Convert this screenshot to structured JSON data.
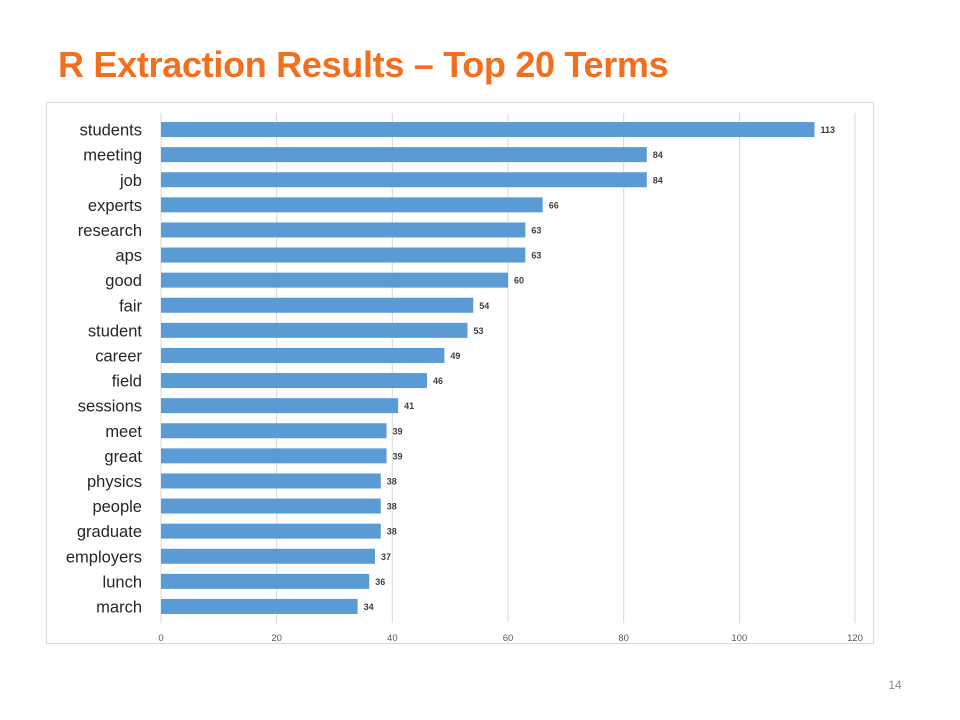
{
  "slide": {
    "title": "R Extraction Results – Top 20 Terms",
    "page_number": "14"
  },
  "colors": {
    "title": "#F36F1D",
    "bar": "#5B9BD5",
    "grid": "#d9d9d9"
  },
  "chart_data": {
    "type": "bar",
    "orientation": "horizontal",
    "categories": [
      "students",
      "meeting",
      "job",
      "experts",
      "research",
      "aps",
      "good",
      "fair",
      "student",
      "career",
      "field",
      "sessions",
      "meet",
      "great",
      "physics",
      "people",
      "graduate",
      "employers",
      "lunch",
      "march"
    ],
    "values": [
      113,
      84,
      84,
      66,
      63,
      63,
      60,
      54,
      53,
      49,
      46,
      41,
      39,
      39,
      38,
      38,
      38,
      37,
      36,
      34
    ],
    "xlim": [
      0,
      120
    ],
    "xticks": [
      0,
      20,
      40,
      60,
      80,
      100,
      120
    ],
    "grid": true,
    "data_labels": true,
    "title": "",
    "xlabel": "",
    "ylabel": ""
  }
}
